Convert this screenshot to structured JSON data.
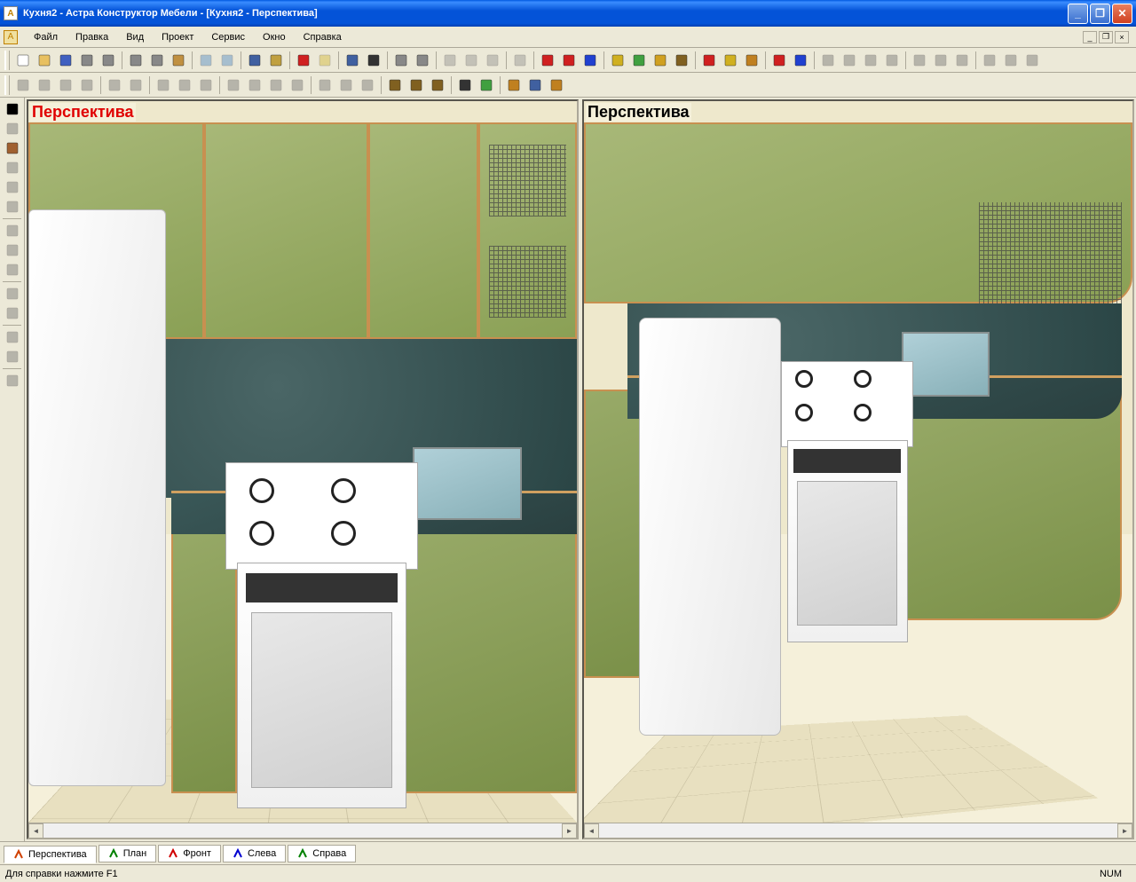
{
  "window": {
    "title": "Кухня2 - Астра Конструктор Мебели - [Кухня2 - Перспектива]",
    "titlebar_gradient": [
      "#0058e0",
      "#3a8cff",
      "#0453d8",
      "#0040b0"
    ],
    "chrome_bg": "#ece9d8",
    "border_color": "#aca899"
  },
  "menu": {
    "items": [
      "Файл",
      "Правка",
      "Вид",
      "Проект",
      "Сервис",
      "Окно",
      "Справка"
    ]
  },
  "toolbar1": {
    "groups": [
      {
        "icons": [
          "new",
          "open",
          "save",
          "print",
          "print-preview"
        ]
      },
      {
        "icons": [
          "cut",
          "copy",
          "paste"
        ]
      },
      {
        "icons": [
          "undo",
          "redo"
        ],
        "disabled": [
          true,
          true
        ]
      },
      {
        "icons": [
          "grid-toggle",
          "layers"
        ]
      },
      {
        "icons": [
          "red-tool",
          "yellow-tool"
        ],
        "disabled": [
          false,
          true
        ]
      },
      {
        "icons": [
          "hierarchy",
          "sigma"
        ]
      },
      {
        "icons": [
          "panel1",
          "panel2"
        ]
      },
      {
        "icons": [
          "zoom-in",
          "zoom-out",
          "zoom-fit"
        ],
        "disabled": [
          true,
          true,
          true
        ]
      },
      {
        "icons": [
          "move-tool"
        ],
        "disabled": [
          true
        ]
      },
      {
        "icons": [
          "select-red",
          "select-x",
          "select-blue"
        ]
      },
      {
        "icons": [
          "cube-yellow",
          "cube-multi",
          "cube-gold",
          "cube-shade"
        ]
      },
      {
        "icons": [
          "obj-red",
          "obj-yellow",
          "obj-sel"
        ]
      },
      {
        "icons": [
          "graph-tool",
          "arrow-diag"
        ]
      },
      {
        "icons": [
          "layout1",
          "layout2",
          "layout3",
          "layout4"
        ],
        "disabled": [
          true,
          true,
          true,
          true
        ]
      },
      {
        "icons": [
          "split-h",
          "split-v",
          "split-4"
        ],
        "disabled": [
          true,
          true,
          true
        ]
      },
      {
        "icons": [
          "view-top",
          "view-front",
          "view-side"
        ],
        "disabled": [
          true,
          true,
          true
        ]
      }
    ]
  },
  "toolbar2": {
    "groups": [
      {
        "icons": [
          "dim-h1",
          "dim-h2",
          "dim-h3",
          "dim-h4"
        ],
        "disabled": [
          true,
          true,
          true,
          true
        ]
      },
      {
        "icons": [
          "dim-v1",
          "dim-v2"
        ],
        "disabled": [
          true,
          true
        ]
      },
      {
        "icons": [
          "dim-a1",
          "dim-a2",
          "dim-a3"
        ],
        "disabled": [
          true,
          true,
          true
        ]
      },
      {
        "icons": [
          "align1",
          "align2",
          "align3",
          "align4"
        ],
        "disabled": [
          true,
          true,
          true,
          true
        ]
      },
      {
        "icons": [
          "distr1",
          "distr2",
          "distr3"
        ],
        "disabled": [
          true,
          true,
          true
        ]
      },
      {
        "icons": [
          "iso1",
          "iso2",
          "iso3"
        ]
      },
      {
        "icons": [
          "render1",
          "render2"
        ]
      },
      {
        "icons": [
          "hide1",
          "hide2",
          "hide3"
        ]
      }
    ]
  },
  "left_toolbar": {
    "items": [
      {
        "icon": "cursor",
        "disabled": false
      },
      {
        "icon": "line",
        "disabled": true
      },
      {
        "icon": "shape-brown",
        "disabled": false
      },
      {
        "icon": "rect",
        "disabled": true
      },
      {
        "icon": "circle",
        "disabled": true
      },
      {
        "icon": "scissors",
        "disabled": true
      },
      {
        "sep": true
      },
      {
        "icon": "text",
        "disabled": true
      },
      {
        "icon": "measure",
        "disabled": true
      },
      {
        "icon": "list",
        "disabled": true
      },
      {
        "sep": true
      },
      {
        "icon": "rotate-cw",
        "disabled": true
      },
      {
        "icon": "rotate-ccw",
        "disabled": true
      },
      {
        "sep": true
      },
      {
        "icon": "move-h",
        "disabled": true
      },
      {
        "icon": "move-v",
        "disabled": true
      },
      {
        "sep": true
      },
      {
        "icon": "props",
        "disabled": true
      }
    ]
  },
  "viewports": {
    "left": {
      "label": "Перспектива",
      "active": true
    },
    "right": {
      "label": "Перспектива",
      "active": false
    }
  },
  "scene_colors": {
    "wall": "#eee8cc",
    "floor": "#e8e0c0",
    "cabinet_light": "#a8b878",
    "cabinet_dark": "#7a9048",
    "cabinet_border": "#c89050",
    "countertop": "#2a4040",
    "backsplash": "#3a5555",
    "appliance_white": "#ffffff",
    "sink": "#88b0b8"
  },
  "view_tabs": {
    "items": [
      {
        "label": "Перспектива",
        "icon_color": "#d04000",
        "active": true
      },
      {
        "label": "План",
        "icon_color": "#008000",
        "active": false
      },
      {
        "label": "Фронт",
        "icon_color": "#d00000",
        "active": false
      },
      {
        "label": "Слева",
        "icon_color": "#0000d0",
        "active": false
      },
      {
        "label": "Справа",
        "icon_color": "#008000",
        "active": false
      }
    ]
  },
  "statusbar": {
    "help_text": "Для справки нажмите F1",
    "num_lock": "NUM"
  }
}
